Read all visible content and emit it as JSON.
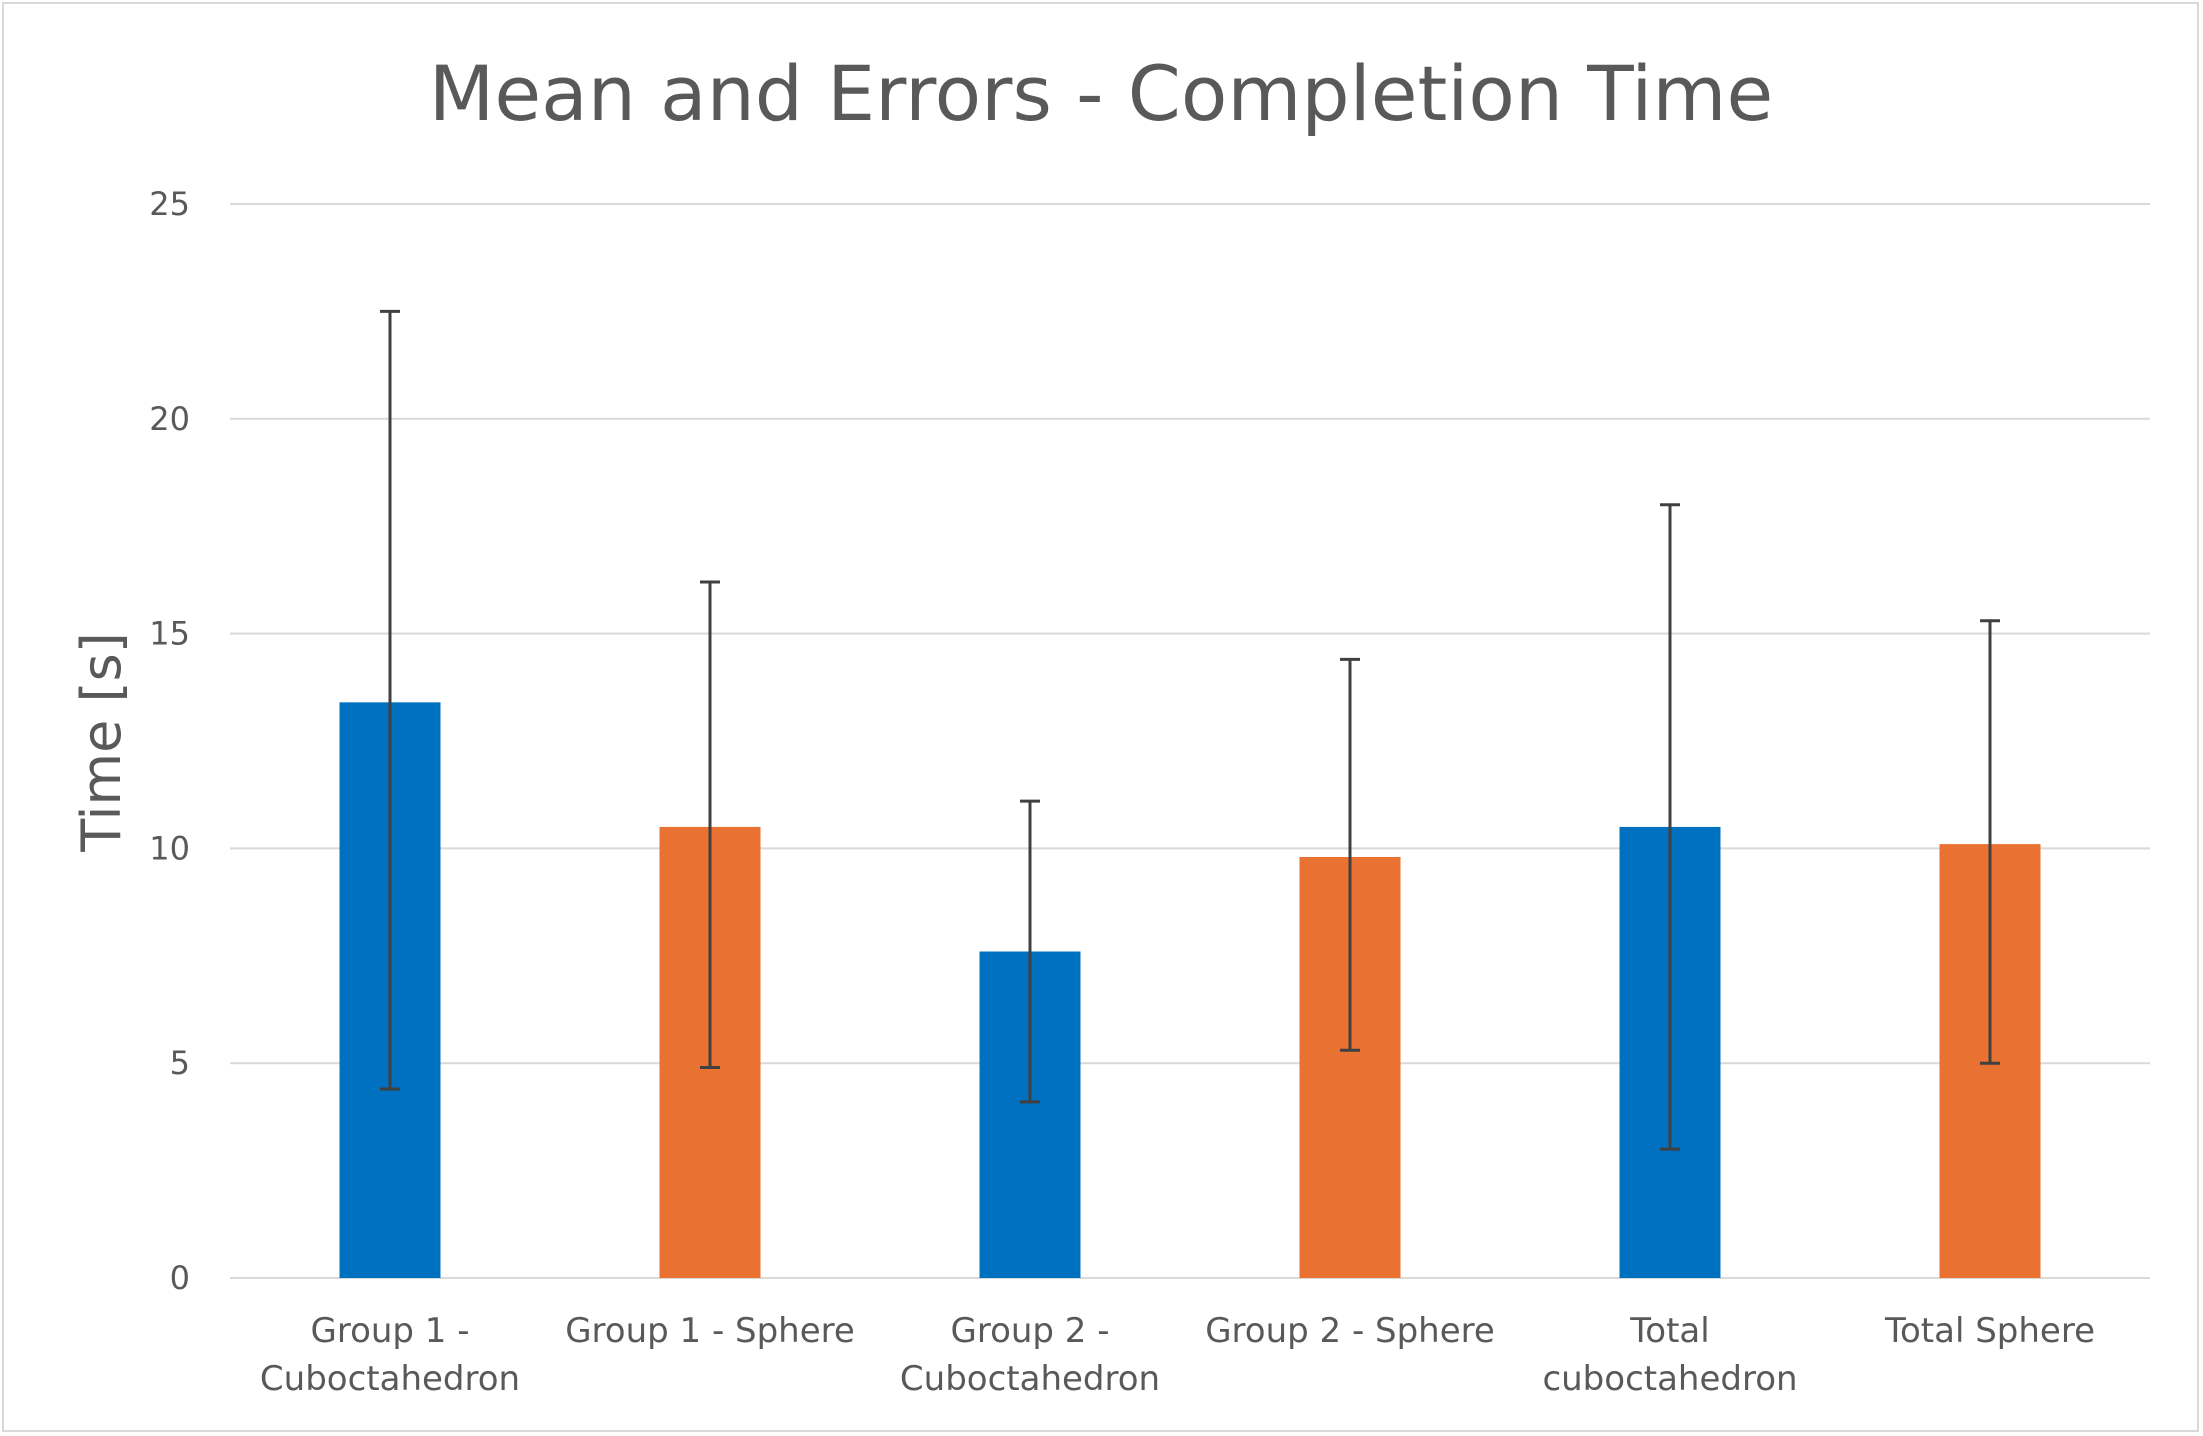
{
  "chart_data": {
    "type": "bar",
    "title": "Mean and Errors - Completion Time",
    "xlabel": "",
    "ylabel": "Time [s]",
    "ylim": [
      0,
      25
    ],
    "yticks": [
      0,
      5,
      10,
      15,
      20,
      25
    ],
    "grid": true,
    "legend": "none",
    "categories": [
      [
        "Group 1 -",
        "Cuboctahedron"
      ],
      [
        "Group 1 - Sphere"
      ],
      [
        "Group 2 -",
        "Cuboctahedron"
      ],
      [
        "Group 2 - Sphere"
      ],
      [
        "Total",
        "cuboctahedron"
      ],
      [
        "Total Sphere"
      ]
    ],
    "values": [
      13.4,
      10.5,
      7.6,
      9.8,
      10.5,
      10.1
    ],
    "error_high": [
      22.5,
      16.2,
      11.1,
      14.4,
      18.0,
      15.3
    ],
    "error_low": [
      4.4,
      4.9,
      4.1,
      5.3,
      3.0,
      5.0
    ],
    "colors": [
      "#0070C0",
      "#E97132",
      "#0070C0",
      "#E97132",
      "#0070C0",
      "#E97132"
    ],
    "gridline_color": "#d9d9d9",
    "error_bar_color": "#404040"
  }
}
